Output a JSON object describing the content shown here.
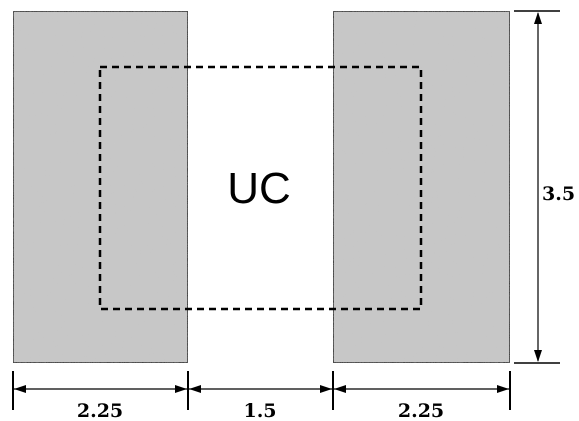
{
  "diagram": {
    "center_label": "UC",
    "dimensions": {
      "left_width": "2.25",
      "gap_width": "1.5",
      "right_width": "2.25",
      "height": "3.5"
    },
    "colors": {
      "block_fill": "#c8c8c8",
      "stroke": "#000000",
      "background": "#ffffff"
    }
  }
}
